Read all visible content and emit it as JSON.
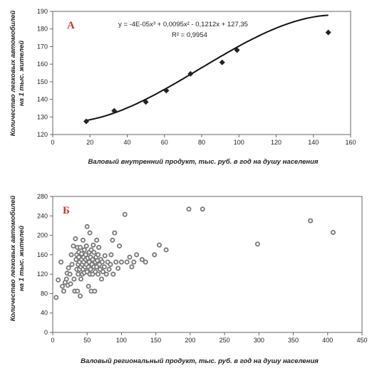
{
  "chart_data": [
    {
      "type": "scatter",
      "panel_label": "А",
      "equation": "y = -4E-05x³ + 0,0095x² - 0,1212x + 127,35",
      "r_squared": "R² = 0,9954",
      "xlabel": "Валовый внутренний продукт, тыс. руб. в год на душу населения",
      "ylabel": [
        "Количество легковых автомобилей",
        "на 1 тыс. жителей"
      ],
      "xlim": [
        0,
        160
      ],
      "ylim": [
        120,
        190
      ],
      "xticks": [
        0,
        20,
        40,
        60,
        80,
        100,
        120,
        140,
        160
      ],
      "yticks": [
        120,
        130,
        140,
        150,
        160,
        170,
        180,
        190
      ],
      "grid": false,
      "trendline": {
        "type": "polynomial",
        "coefficients": [
          127.35,
          -0.1212,
          0.0095,
          -4e-05
        ],
        "range": [
          18,
          148
        ]
      },
      "points": [
        {
          "x": 18,
          "y": 127.5
        },
        {
          "x": 33,
          "y": 133.5
        },
        {
          "x": 50,
          "y": 138.5
        },
        {
          "x": 61,
          "y": 145
        },
        {
          "x": 74,
          "y": 154.5
        },
        {
          "x": 91,
          "y": 161
        },
        {
          "x": 99,
          "y": 168
        },
        {
          "x": 148,
          "y": 178
        }
      ],
      "marker": "diamond",
      "color": "#222222"
    },
    {
      "type": "scatter",
      "panel_label": "Б",
      "xlabel": "Валовый региональный продукт, тыс. руб. в год на душу населения",
      "ylabel": [
        "Количество легковых автомобилей",
        "на 1 тыс. жителей"
      ],
      "xlim": [
        0,
        450
      ],
      "ylim": [
        0,
        280
      ],
      "xticks": [
        0,
        50,
        100,
        150,
        200,
        250,
        300,
        350,
        400,
        450
      ],
      "yticks": [
        0,
        40,
        80,
        120,
        160,
        200,
        240,
        280
      ],
      "grid": false,
      "marker": "circle",
      "color": "#777777",
      "points": [
        {
          "x": 5,
          "y": 72
        },
        {
          "x": 8,
          "y": 108
        },
        {
          "x": 12,
          "y": 145
        },
        {
          "x": 14,
          "y": 95
        },
        {
          "x": 16,
          "y": 85
        },
        {
          "x": 18,
          "y": 103
        },
        {
          "x": 20,
          "y": 110
        },
        {
          "x": 21,
          "y": 122
        },
        {
          "x": 22,
          "y": 97
        },
        {
          "x": 23,
          "y": 133
        },
        {
          "x": 25,
          "y": 120
        },
        {
          "x": 26,
          "y": 100
        },
        {
          "x": 27,
          "y": 160
        },
        {
          "x": 28,
          "y": 140
        },
        {
          "x": 30,
          "y": 178
        },
        {
          "x": 31,
          "y": 110
        },
        {
          "x": 32,
          "y": 85
        },
        {
          "x": 33,
          "y": 193
        },
        {
          "x": 34,
          "y": 150
        },
        {
          "x": 35,
          "y": 130
        },
        {
          "x": 35,
          "y": 160
        },
        {
          "x": 36,
          "y": 85
        },
        {
          "x": 36,
          "y": 175
        },
        {
          "x": 37,
          "y": 140
        },
        {
          "x": 37,
          "y": 120
        },
        {
          "x": 38,
          "y": 155
        },
        {
          "x": 38,
          "y": 165
        },
        {
          "x": 39,
          "y": 130
        },
        {
          "x": 39,
          "y": 145
        },
        {
          "x": 40,
          "y": 75
        },
        {
          "x": 40,
          "y": 175
        },
        {
          "x": 41,
          "y": 110
        },
        {
          "x": 41,
          "y": 135
        },
        {
          "x": 42,
          "y": 150
        },
        {
          "x": 42,
          "y": 162
        },
        {
          "x": 43,
          "y": 120
        },
        {
          "x": 43,
          "y": 140
        },
        {
          "x": 44,
          "y": 190
        },
        {
          "x": 44,
          "y": 130
        },
        {
          "x": 45,
          "y": 155
        },
        {
          "x": 45,
          "y": 145
        },
        {
          "x": 46,
          "y": 170
        },
        {
          "x": 46,
          "y": 123
        },
        {
          "x": 47,
          "y": 135
        },
        {
          "x": 48,
          "y": 160
        },
        {
          "x": 48,
          "y": 150
        },
        {
          "x": 49,
          "y": 140
        },
        {
          "x": 49,
          "y": 178
        },
        {
          "x": 50,
          "y": 218
        },
        {
          "x": 50,
          "y": 125
        },
        {
          "x": 51,
          "y": 153
        },
        {
          "x": 52,
          "y": 135
        },
        {
          "x": 52,
          "y": 95
        },
        {
          "x": 53,
          "y": 165
        },
        {
          "x": 53,
          "y": 145
        },
        {
          "x": 54,
          "y": 205
        },
        {
          "x": 54,
          "y": 120
        },
        {
          "x": 55,
          "y": 155
        },
        {
          "x": 55,
          "y": 130
        },
        {
          "x": 56,
          "y": 85
        },
        {
          "x": 56,
          "y": 170
        },
        {
          "x": 57,
          "y": 140
        },
        {
          "x": 58,
          "y": 150
        },
        {
          "x": 58,
          "y": 120
        },
        {
          "x": 59,
          "y": 180
        },
        {
          "x": 60,
          "y": 135
        },
        {
          "x": 60,
          "y": 165
        },
        {
          "x": 61,
          "y": 85
        },
        {
          "x": 62,
          "y": 145
        },
        {
          "x": 62,
          "y": 125
        },
        {
          "x": 63,
          "y": 155
        },
        {
          "x": 64,
          "y": 190
        },
        {
          "x": 64,
          "y": 135
        },
        {
          "x": 65,
          "y": 148
        },
        {
          "x": 66,
          "y": 120
        },
        {
          "x": 66,
          "y": 160
        },
        {
          "x": 67,
          "y": 175
        },
        {
          "x": 68,
          "y": 140
        },
        {
          "x": 69,
          "y": 130
        },
        {
          "x": 70,
          "y": 150
        },
        {
          "x": 71,
          "y": 110
        },
        {
          "x": 72,
          "y": 145
        },
        {
          "x": 73,
          "y": 125
        },
        {
          "x": 75,
          "y": 135
        },
        {
          "x": 76,
          "y": 158
        },
        {
          "x": 78,
          "y": 120
        },
        {
          "x": 80,
          "y": 145
        },
        {
          "x": 82,
          "y": 130
        },
        {
          "x": 84,
          "y": 140
        },
        {
          "x": 85,
          "y": 160
        },
        {
          "x": 87,
          "y": 190
        },
        {
          "x": 88,
          "y": 120
        },
        {
          "x": 90,
          "y": 205
        },
        {
          "x": 92,
          "y": 145
        },
        {
          "x": 95,
          "y": 132
        },
        {
          "x": 97,
          "y": 178
        },
        {
          "x": 100,
          "y": 145
        },
        {
          "x": 105,
          "y": 243
        },
        {
          "x": 108,
          "y": 145
        },
        {
          "x": 112,
          "y": 155
        },
        {
          "x": 115,
          "y": 135
        },
        {
          "x": 118,
          "y": 145
        },
        {
          "x": 122,
          "y": 160
        },
        {
          "x": 130,
          "y": 150
        },
        {
          "x": 135,
          "y": 145
        },
        {
          "x": 148,
          "y": 160
        },
        {
          "x": 155,
          "y": 180
        },
        {
          "x": 165,
          "y": 170
        },
        {
          "x": 198,
          "y": 254
        },
        {
          "x": 218,
          "y": 254
        },
        {
          "x": 298,
          "y": 182
        },
        {
          "x": 375,
          "y": 230
        },
        {
          "x": 408,
          "y": 206
        }
      ]
    }
  ]
}
